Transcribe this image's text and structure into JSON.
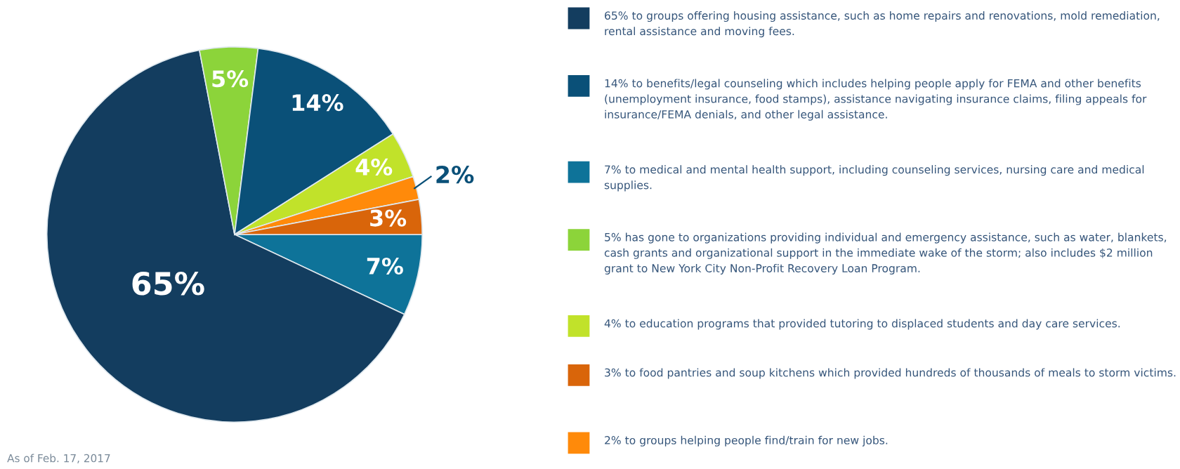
{
  "chart_data": {
    "type": "pie",
    "categories": [
      "7% to medical and mental health support, including counseling services, nursing care and medical supplies.",
      "65% to groups offering housing assistance, such as home repairs and renovations, mold remediation, rental assistance and moving fees.",
      "5% has gone to organizations providing individual and emergency assistance, such as water, blankets, cash grants and organizational support in the immediate wake of the storm; also includes $2 million grant to New York City Non-Profit Recovery Loan Program.",
      "14% to benefits/legal counseling which includes helping people apply for FEMA and other benefits (unemployment insurance, food stamps), assistance navigating insurance claims, filing appeals for insurance/FEMA denials, and other legal assistance.",
      "4% to education programs that provided tutoring to displaced students and day care services.",
      "2% to groups helping people find/train for new jobs.",
      "3% to food pantries and soup kitchens which provided hundreds of thousands of meals to storm victims."
    ],
    "values": [
      7,
      65,
      5,
      14,
      4,
      2,
      3
    ],
    "colors": [
      "#0e7399",
      "#133d5f",
      "#8cd43a",
      "#0a5078",
      "#c1e22a",
      "#ff8a0a",
      "#d9650a"
    ],
    "value_labels": [
      "7%",
      "65%",
      "5%",
      "14%",
      "4%",
      "2%",
      "3%"
    ],
    "legend": "right",
    "annotations": [
      "As of Feb. 17, 2017"
    ]
  }
}
